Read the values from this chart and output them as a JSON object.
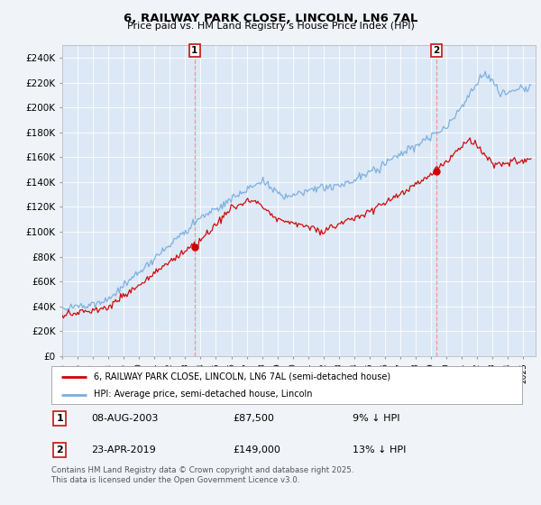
{
  "title": "6, RAILWAY PARK CLOSE, LINCOLN, LN6 7AL",
  "subtitle": "Price paid vs. HM Land Registry's House Price Index (HPI)",
  "background_color": "#f0f4f8",
  "plot_bg_color": "#dce8f5",
  "ylim": [
    0,
    250000
  ],
  "yticks": [
    0,
    20000,
    40000,
    60000,
    80000,
    100000,
    120000,
    140000,
    160000,
    180000,
    200000,
    220000,
    240000
  ],
  "year_start": 1995,
  "year_end": 2025,
  "marker1_year": 2003.6,
  "marker1_price": 87500,
  "marker1_label": "1",
  "marker1_date": "08-AUG-2003",
  "marker1_amount": "£87,500",
  "marker1_note": "9% ↓ HPI",
  "marker2_year": 2019.33,
  "marker2_price": 149000,
  "marker2_label": "2",
  "marker2_date": "23-APR-2019",
  "marker2_amount": "£149,000",
  "marker2_note": "13% ↓ HPI",
  "legend_label_red": "6, RAILWAY PARK CLOSE, LINCOLN, LN6 7AL (semi-detached house)",
  "legend_label_blue": "HPI: Average price, semi-detached house, Lincoln",
  "footnote": "Contains HM Land Registry data © Crown copyright and database right 2025.\nThis data is licensed under the Open Government Licence v3.0.",
  "red_color": "#cc0000",
  "blue_color": "#7aade0",
  "dashed_color": "#ff8888"
}
